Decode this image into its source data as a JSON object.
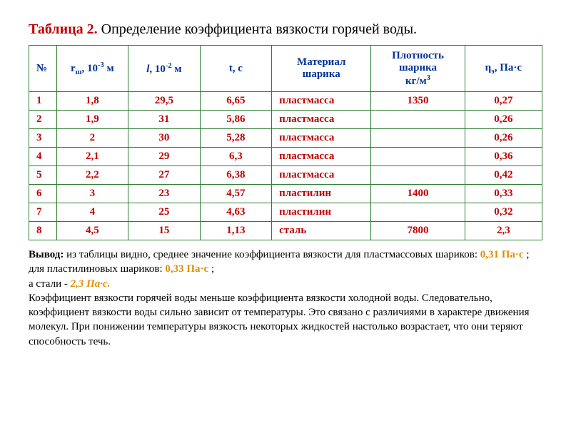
{
  "title": {
    "label_red": "Таблица 2.",
    "label_black": "Определение коэффициента вязкости горячей воды."
  },
  "table": {
    "headers": {
      "n": "№",
      "r_pre": "r",
      "r_sub": "ш",
      "r_post": ", 10",
      "r_sup": "-3",
      "r_unit": " м",
      "l_pre": "l",
      "l_post": ", 10",
      "l_sup": "-2",
      "l_unit": " м",
      "t": "t, c",
      "mat_l1": "Материал",
      "mat_l2": "шарика",
      "d_l1": "Плотность",
      "d_l2": "шарика",
      "d_l3_pre": "кг/м",
      "d_l3_sup": "3",
      "e_pre": "η",
      "e_sub": "э",
      "e_post": ", Па·с"
    },
    "rows": [
      {
        "n": "1",
        "r": "1,8",
        "l": "29,5",
        "t": "6,65",
        "mat": "пластмасса",
        "d": "1350",
        "e": "0,27"
      },
      {
        "n": "2",
        "r": "1,9",
        "l": "31",
        "t": "5,86",
        "mat": "пластмасса",
        "d": "",
        "e": "0,26"
      },
      {
        "n": "3",
        "r": "2",
        "l": "30",
        "t": "5,28",
        "mat": "пластмасса",
        "d": "",
        "e": "0,26"
      },
      {
        "n": "4",
        "r": "2,1",
        "l": "29",
        "t": "6,3",
        "mat": "пластмасса",
        "d": "",
        "e": "0,36"
      },
      {
        "n": "5",
        "r": "2,2",
        "l": "27",
        "t": "6,38",
        "mat": "пластмасса",
        "d": "",
        "e": "0,42"
      },
      {
        "n": "6",
        "r": "3",
        "l": "23",
        "t": "4,57",
        "mat": "пластилин",
        "d": "1400",
        "e": "0,33"
      },
      {
        "n": "7",
        "r": "4",
        "l": "25",
        "t": "4,63",
        "mat": "пластилин",
        "d": "",
        "e": "0,32"
      },
      {
        "n": "8",
        "r": "4,5",
        "l": "15",
        "t": "1,13",
        "mat": "сталь",
        "d": "7800",
        "e": "2,3"
      }
    ]
  },
  "conclusion": {
    "lead": "Вывод:",
    "p1a": " из таблицы видно, среднее значение коэффициента вязкости для пластмассовых шариков: ",
    "v1": "0,31 Па·с",
    "p1b": " ;  для пластилиновых шариков: ",
    "v2": "0,33 Па·с",
    "p1c": " ;",
    "p2a": "а стали - ",
    "v3": "2,3 Па·с.",
    "p3": "Коэффициент вязкости горячей воды меньше коэффициента вязкости холодной воды. Следовательно, коэффициент вязкости воды сильно зависит от температуры. Это связано с различиями в характере движения молекул. При понижении температуры вязкость некоторых жидкостей настолько возрастает, что они теряют способность течь."
  }
}
